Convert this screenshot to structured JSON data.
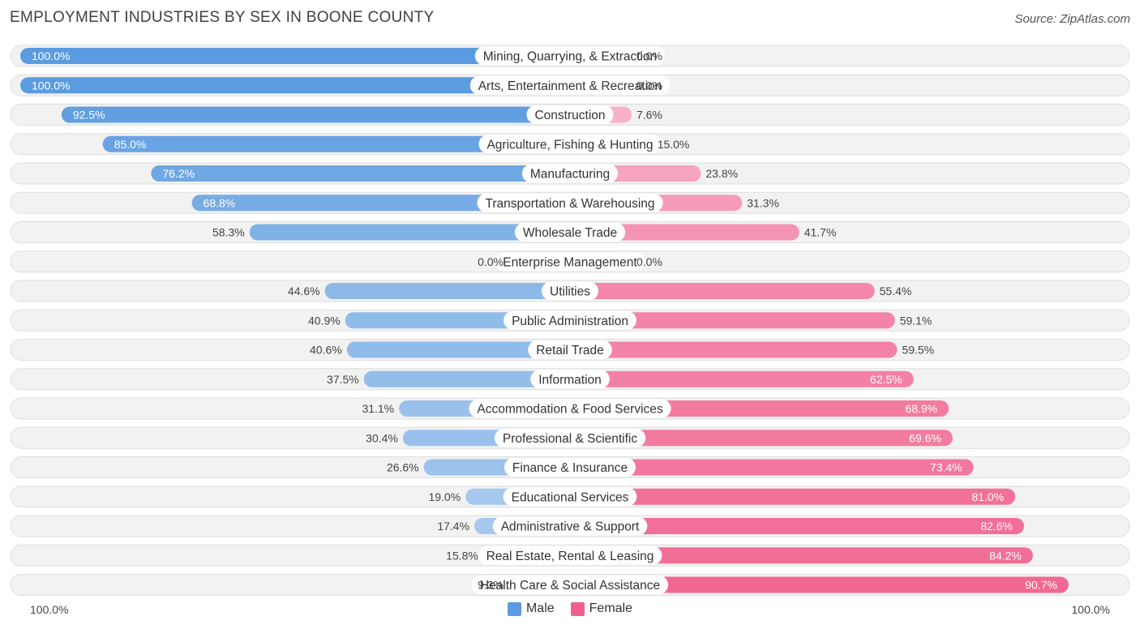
{
  "title": "EMPLOYMENT INDUSTRIES BY SEX IN BOONE COUNTY",
  "source": "Source: ZipAtlas.com",
  "colors": {
    "male": "#5b9be0",
    "male_light": "#a9c8ec",
    "female": "#f0608d",
    "female_light": "#f7a8c1",
    "row_bg": "#f2f2f2",
    "row_border": "#dedede"
  },
  "legend": {
    "male_label": "Male",
    "female_label": "Female"
  },
  "axis": {
    "left_label": "100.0%",
    "right_label": "100.0%"
  },
  "chart_data": {
    "type": "bar",
    "orientation": "horizontal-diverging",
    "title": "EMPLOYMENT INDUSTRIES BY SEX IN BOONE COUNTY",
    "xlim": [
      -100,
      100
    ],
    "categories": [
      "Mining, Quarrying, & Extraction",
      "Arts, Entertainment & Recreation",
      "Construction",
      "Agriculture, Fishing & Hunting",
      "Manufacturing",
      "Transportation & Warehousing",
      "Wholesale Trade",
      "Enterprise Management",
      "Utilities",
      "Public Administration",
      "Retail Trade",
      "Information",
      "Accommodation & Food Services",
      "Professional & Scientific",
      "Finance & Insurance",
      "Educational Services",
      "Administrative & Support",
      "Real Estate, Rental & Leasing",
      "Health Care & Social Assistance"
    ],
    "series": [
      {
        "name": "Male",
        "values": [
          100.0,
          100.0,
          92.5,
          85.0,
          76.2,
          68.8,
          58.3,
          0.0,
          44.6,
          40.9,
          40.6,
          37.5,
          31.1,
          30.4,
          26.6,
          19.0,
          17.4,
          15.8,
          9.3
        ],
        "labels": [
          "100.0%",
          "100.0%",
          "92.5%",
          "85.0%",
          "76.2%",
          "68.8%",
          "58.3%",
          "0.0%",
          "44.6%",
          "40.9%",
          "40.6%",
          "37.5%",
          "31.1%",
          "30.4%",
          "26.6%",
          "19.0%",
          "17.4%",
          "15.8%",
          "9.3%"
        ]
      },
      {
        "name": "Female",
        "values": [
          0.0,
          0.0,
          7.6,
          15.0,
          23.8,
          31.3,
          41.7,
          0.0,
          55.4,
          59.1,
          59.5,
          62.5,
          68.9,
          69.6,
          73.4,
          81.0,
          82.6,
          84.2,
          90.7
        ],
        "labels": [
          "0.0%",
          "0.0%",
          "7.6%",
          "15.0%",
          "23.8%",
          "31.3%",
          "41.7%",
          "0.0%",
          "55.4%",
          "59.1%",
          "59.5%",
          "62.5%",
          "68.9%",
          "69.6%",
          "73.4%",
          "81.0%",
          "82.6%",
          "84.2%",
          "90.7%"
        ]
      }
    ]
  }
}
